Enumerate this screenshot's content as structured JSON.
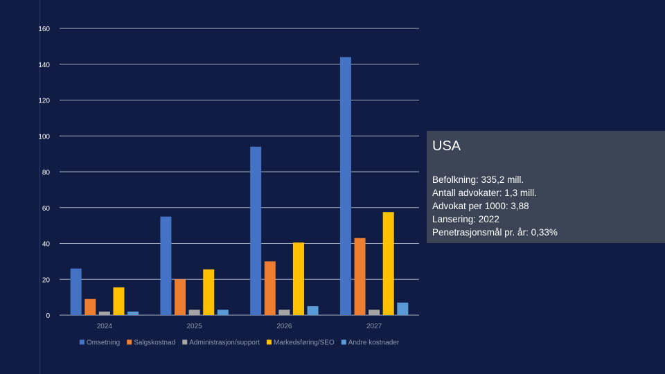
{
  "slide": {
    "info": {
      "title": "USA",
      "lines": [
        "Befolkning: 335,2 mill.",
        "Antall advokater: 1,3 mill.",
        "Advokat per 1000: 3,88",
        "Lansering: 2022",
        "Penetrasjonsmål pr. år: 0,33%"
      ]
    }
  },
  "chart_data": {
    "type": "bar",
    "title": "",
    "xlabel": "",
    "ylabel": "",
    "ylim": [
      0,
      160
    ],
    "yticks": [
      0,
      20,
      40,
      60,
      80,
      100,
      120,
      140,
      160
    ],
    "grid": true,
    "legend_position": "bottom",
    "categories": [
      "2024",
      "2025",
      "2026",
      "2027"
    ],
    "series": [
      {
        "name": "Omsetning",
        "color": "#4472c4",
        "values": [
          26,
          55,
          94,
          144
        ]
      },
      {
        "name": "Salgskostnad",
        "color": "#ed7d31",
        "values": [
          9,
          20,
          30,
          43
        ]
      },
      {
        "name": "Administrasjon/support",
        "color": "#a5a5a5",
        "values": [
          2,
          3,
          3,
          3
        ]
      },
      {
        "name": "Markedsføring/SEO",
        "color": "#ffc000",
        "values": [
          15.5,
          25.5,
          40.5,
          57.5
        ]
      },
      {
        "name": "Andre kostnader",
        "color": "#5b9bd5",
        "values": [
          2,
          3,
          5,
          7
        ]
      }
    ]
  }
}
